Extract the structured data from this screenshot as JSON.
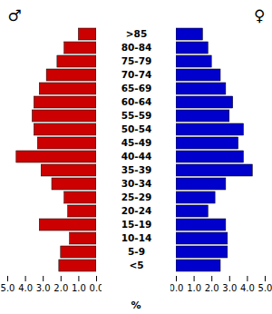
{
  "chart_data": {
    "type": "bar",
    "orientation": "horizontal",
    "categories": [
      "<5",
      "5-9",
      "10-14",
      "15-19",
      "20-24",
      "25-29",
      "30-34",
      "35-39",
      "40-44",
      "45-49",
      "50-54",
      "55-59",
      "60-64",
      "65-69",
      "70-74",
      "75-79",
      "80-84",
      ">85"
    ],
    "series": [
      {
        "name": "♂",
        "color": "#cc0000",
        "values": [
          2.1,
          2.0,
          1.5,
          3.2,
          1.6,
          1.8,
          2.5,
          3.1,
          4.5,
          3.3,
          3.5,
          3.6,
          3.5,
          3.2,
          2.8,
          2.2,
          1.8,
          1.0
        ]
      },
      {
        "name": "♀",
        "color": "#0000cc",
        "values": [
          2.5,
          2.9,
          2.9,
          2.8,
          1.8,
          2.2,
          2.8,
          4.3,
          3.8,
          3.5,
          3.8,
          3.0,
          3.2,
          2.8,
          2.5,
          2.0,
          1.8,
          1.5
        ]
      }
    ],
    "xlabel": "%",
    "xlim": [
      0,
      5
    ],
    "xticks": [
      0,
      1,
      2,
      3,
      4,
      5
    ]
  }
}
